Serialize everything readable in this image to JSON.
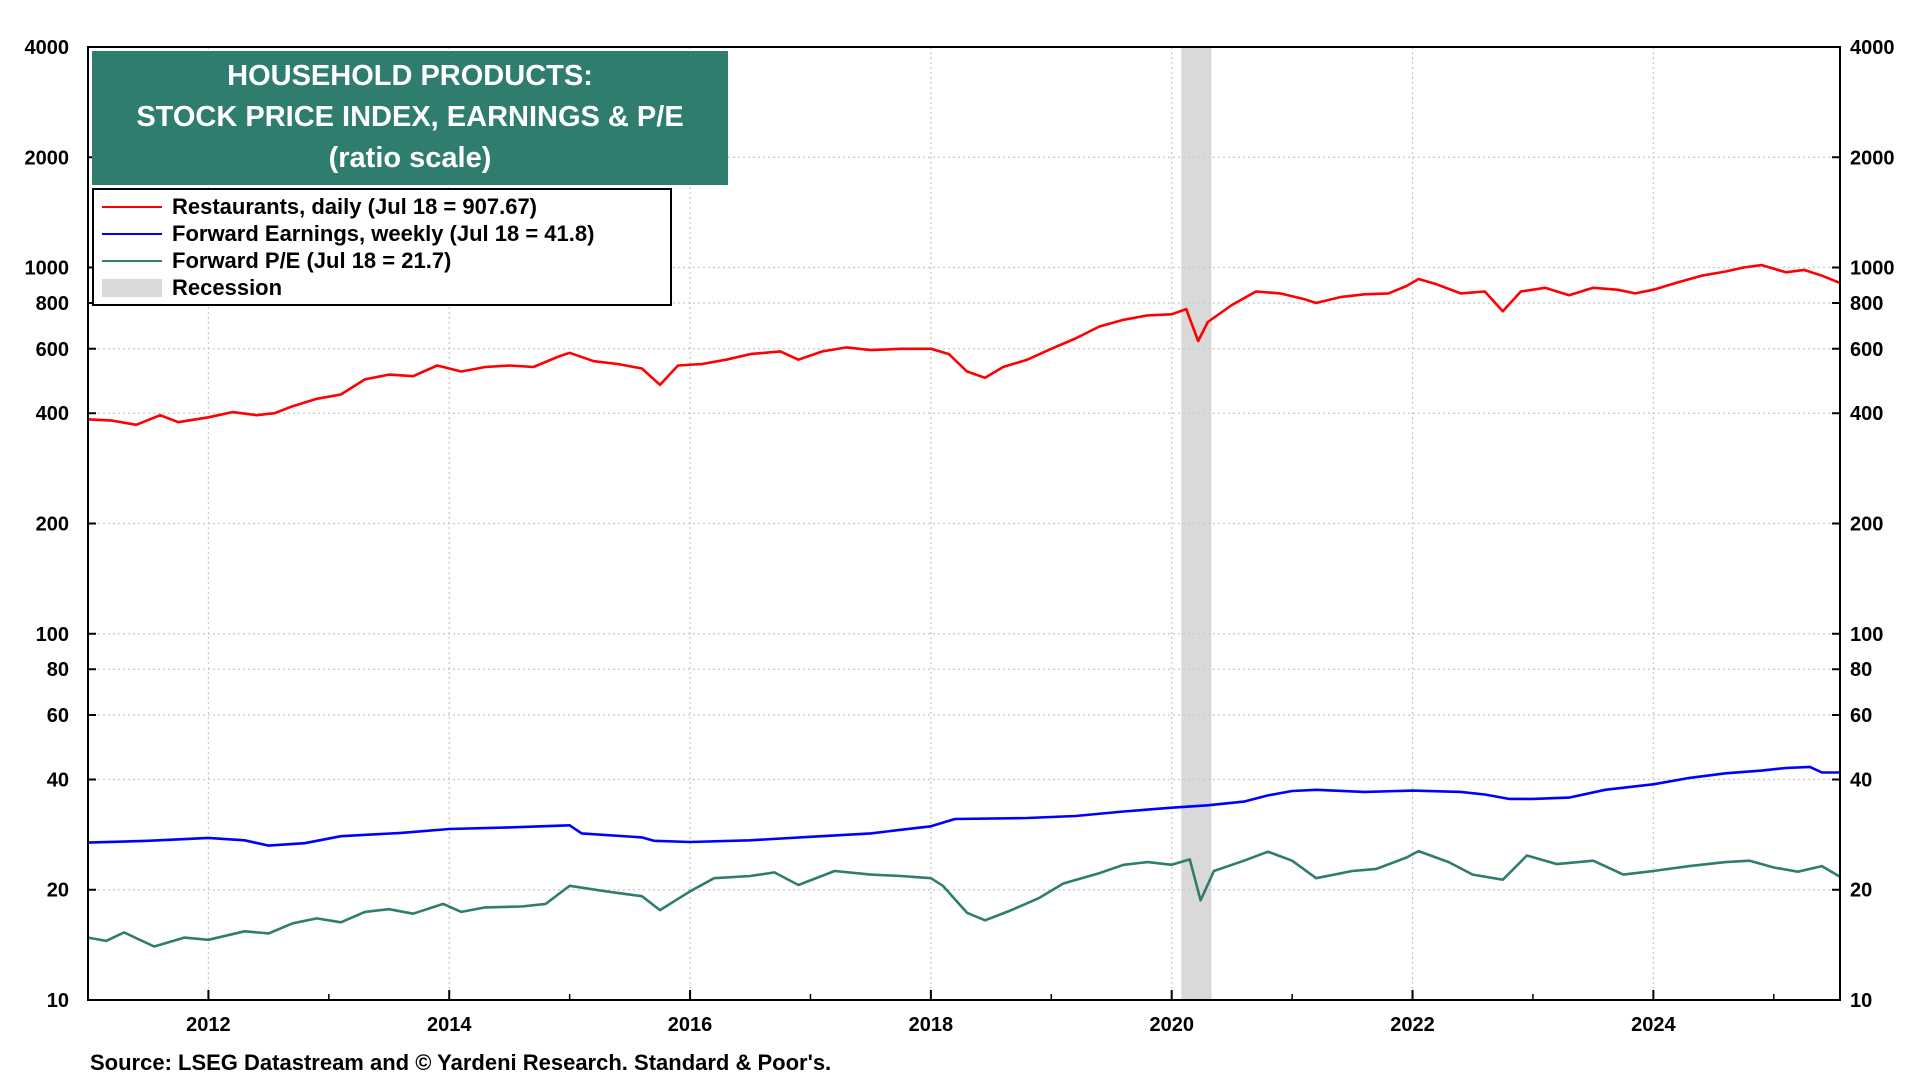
{
  "title": {
    "line1": "HOUSEHOLD PRODUCTS:",
    "line2": "STOCK PRICE INDEX, EARNINGS & P/E",
    "line3": "(ratio scale)"
  },
  "legend": [
    {
      "label": "Restaurants, daily (Jul 18 = 907.67)",
      "color": "#ff0000",
      "kind": "line"
    },
    {
      "label": "Forward Earnings, weekly (Jul 18 = 41.8)",
      "color": "#0000ff",
      "kind": "line"
    },
    {
      "label": "Forward P/E (Jul 18 = 21.7)",
      "color": "#2e7d6e",
      "kind": "line"
    },
    {
      "label": "Recession",
      "color": "#d9d9d9",
      "kind": "band"
    }
  ],
  "source": "Source: LSEG Datastream and © Yardeni Research. Standard & Poor's.",
  "chart_data": {
    "type": "line",
    "yscale": "log",
    "ylim": [
      10,
      4000
    ],
    "xlim": [
      2011.0,
      2025.55
    ],
    "grid": true,
    "legend_position": "top-left",
    "yticks": [
      10,
      20,
      40,
      60,
      80,
      100,
      200,
      400,
      600,
      800,
      1000,
      2000,
      4000
    ],
    "ytick_labels": [
      "10",
      "20",
      "40",
      "60",
      "80",
      "100",
      "200",
      "400",
      "600",
      "800",
      "1000",
      "2000",
      "4000"
    ],
    "xticks": [
      2012,
      2014,
      2016,
      2018,
      2020,
      2022,
      2024
    ],
    "xtick_labels": [
      "2012",
      "2014",
      "2016",
      "2018",
      "2020",
      "2022",
      "2024"
    ],
    "recessions": [
      {
        "start": 2020.08,
        "end": 2020.33
      }
    ],
    "series": [
      {
        "name": "Restaurants, daily (Jul 18 = 907.67)",
        "color": "#ff0000",
        "points": [
          [
            2011.0,
            385
          ],
          [
            2011.2,
            382
          ],
          [
            2011.4,
            372
          ],
          [
            2011.6,
            395
          ],
          [
            2011.75,
            378
          ],
          [
            2012.0,
            390
          ],
          [
            2012.2,
            403
          ],
          [
            2012.4,
            395
          ],
          [
            2012.55,
            400
          ],
          [
            2012.7,
            418
          ],
          [
            2012.9,
            438
          ],
          [
            2013.1,
            450
          ],
          [
            2013.3,
            495
          ],
          [
            2013.5,
            510
          ],
          [
            2013.7,
            505
          ],
          [
            2013.9,
            540
          ],
          [
            2014.1,
            520
          ],
          [
            2014.3,
            535
          ],
          [
            2014.5,
            540
          ],
          [
            2014.7,
            535
          ],
          [
            2014.9,
            570
          ],
          [
            2015.0,
            585
          ],
          [
            2015.2,
            555
          ],
          [
            2015.4,
            545
          ],
          [
            2015.6,
            530
          ],
          [
            2015.75,
            478
          ],
          [
            2015.9,
            540
          ],
          [
            2016.1,
            545
          ],
          [
            2016.3,
            560
          ],
          [
            2016.5,
            580
          ],
          [
            2016.75,
            590
          ],
          [
            2016.9,
            560
          ],
          [
            2017.1,
            590
          ],
          [
            2017.3,
            605
          ],
          [
            2017.5,
            595
          ],
          [
            2017.75,
            600
          ],
          [
            2018.0,
            600
          ],
          [
            2018.15,
            580
          ],
          [
            2018.3,
            520
          ],
          [
            2018.45,
            500
          ],
          [
            2018.6,
            535
          ],
          [
            2018.8,
            560
          ],
          [
            2019.0,
            600
          ],
          [
            2019.2,
            640
          ],
          [
            2019.4,
            690
          ],
          [
            2019.6,
            720
          ],
          [
            2019.8,
            740
          ],
          [
            2020.0,
            745
          ],
          [
            2020.12,
            770
          ],
          [
            2020.22,
            630
          ],
          [
            2020.3,
            710
          ],
          [
            2020.5,
            790
          ],
          [
            2020.7,
            860
          ],
          [
            2020.9,
            850
          ],
          [
            2021.1,
            820
          ],
          [
            2021.2,
            800
          ],
          [
            2021.4,
            830
          ],
          [
            2021.6,
            845
          ],
          [
            2021.8,
            850
          ],
          [
            2021.95,
            890
          ],
          [
            2022.05,
            930
          ],
          [
            2022.2,
            900
          ],
          [
            2022.4,
            850
          ],
          [
            2022.6,
            860
          ],
          [
            2022.75,
            760
          ],
          [
            2022.9,
            860
          ],
          [
            2023.1,
            880
          ],
          [
            2023.3,
            840
          ],
          [
            2023.5,
            880
          ],
          [
            2023.7,
            870
          ],
          [
            2023.85,
            850
          ],
          [
            2024.0,
            870
          ],
          [
            2024.2,
            910
          ],
          [
            2024.4,
            950
          ],
          [
            2024.6,
            975
          ],
          [
            2024.75,
            1000
          ],
          [
            2024.9,
            1015
          ],
          [
            2025.1,
            970
          ],
          [
            2025.25,
            985
          ],
          [
            2025.4,
            950
          ],
          [
            2025.55,
            908
          ]
        ]
      },
      {
        "name": "Forward Earnings, weekly (Jul 18 = 41.8)",
        "color": "#0000ff",
        "points": [
          [
            2011.0,
            26.9
          ],
          [
            2011.5,
            27.2
          ],
          [
            2012.0,
            27.7
          ],
          [
            2012.3,
            27.3
          ],
          [
            2012.5,
            26.4
          ],
          [
            2012.8,
            26.8
          ],
          [
            2013.1,
            28.0
          ],
          [
            2013.6,
            28.6
          ],
          [
            2014.0,
            29.3
          ],
          [
            2014.5,
            29.6
          ],
          [
            2015.0,
            30.0
          ],
          [
            2015.1,
            28.5
          ],
          [
            2015.6,
            27.8
          ],
          [
            2015.7,
            27.2
          ],
          [
            2016.0,
            27.0
          ],
          [
            2016.5,
            27.3
          ],
          [
            2017.0,
            27.9
          ],
          [
            2017.5,
            28.5
          ],
          [
            2018.0,
            29.8
          ],
          [
            2018.2,
            31.2
          ],
          [
            2018.8,
            31.4
          ],
          [
            2019.2,
            31.8
          ],
          [
            2019.6,
            32.7
          ],
          [
            2020.0,
            33.5
          ],
          [
            2020.3,
            34.0
          ],
          [
            2020.6,
            34.8
          ],
          [
            2020.8,
            36.2
          ],
          [
            2021.0,
            37.2
          ],
          [
            2021.2,
            37.5
          ],
          [
            2021.6,
            37.0
          ],
          [
            2022.0,
            37.3
          ],
          [
            2022.4,
            37.0
          ],
          [
            2022.6,
            36.4
          ],
          [
            2022.8,
            35.4
          ],
          [
            2023.0,
            35.4
          ],
          [
            2023.3,
            35.7
          ],
          [
            2023.6,
            37.5
          ],
          [
            2024.0,
            38.8
          ],
          [
            2024.3,
            40.4
          ],
          [
            2024.6,
            41.6
          ],
          [
            2024.9,
            42.3
          ],
          [
            2025.1,
            43.0
          ],
          [
            2025.3,
            43.3
          ],
          [
            2025.4,
            41.8
          ],
          [
            2025.55,
            41.8
          ]
        ]
      },
      {
        "name": "Forward P/E (Jul 18 = 21.7)",
        "color": "#2e7d6e",
        "points": [
          [
            2011.0,
            14.8
          ],
          [
            2011.15,
            14.5
          ],
          [
            2011.3,
            15.3
          ],
          [
            2011.55,
            14.0
          ],
          [
            2011.8,
            14.8
          ],
          [
            2012.0,
            14.6
          ],
          [
            2012.3,
            15.4
          ],
          [
            2012.5,
            15.2
          ],
          [
            2012.7,
            16.2
          ],
          [
            2012.9,
            16.7
          ],
          [
            2013.1,
            16.3
          ],
          [
            2013.3,
            17.4
          ],
          [
            2013.5,
            17.7
          ],
          [
            2013.7,
            17.2
          ],
          [
            2013.95,
            18.3
          ],
          [
            2014.1,
            17.4
          ],
          [
            2014.3,
            17.9
          ],
          [
            2014.6,
            18.0
          ],
          [
            2014.8,
            18.3
          ],
          [
            2015.0,
            20.5
          ],
          [
            2015.3,
            19.8
          ],
          [
            2015.6,
            19.2
          ],
          [
            2015.75,
            17.6
          ],
          [
            2016.0,
            19.8
          ],
          [
            2016.2,
            21.5
          ],
          [
            2016.5,
            21.8
          ],
          [
            2016.7,
            22.3
          ],
          [
            2016.9,
            20.6
          ],
          [
            2017.2,
            22.5
          ],
          [
            2017.5,
            22.0
          ],
          [
            2017.75,
            21.8
          ],
          [
            2018.0,
            21.5
          ],
          [
            2018.1,
            20.5
          ],
          [
            2018.3,
            17.3
          ],
          [
            2018.45,
            16.5
          ],
          [
            2018.65,
            17.5
          ],
          [
            2018.9,
            19.0
          ],
          [
            2019.1,
            20.8
          ],
          [
            2019.4,
            22.2
          ],
          [
            2019.6,
            23.4
          ],
          [
            2019.8,
            23.8
          ],
          [
            2020.0,
            23.4
          ],
          [
            2020.15,
            24.2
          ],
          [
            2020.24,
            18.7
          ],
          [
            2020.35,
            22.5
          ],
          [
            2020.6,
            24.0
          ],
          [
            2020.8,
            25.4
          ],
          [
            2021.0,
            24.0
          ],
          [
            2021.2,
            21.5
          ],
          [
            2021.5,
            22.5
          ],
          [
            2021.7,
            22.8
          ],
          [
            2021.95,
            24.5
          ],
          [
            2022.05,
            25.5
          ],
          [
            2022.3,
            23.8
          ],
          [
            2022.5,
            22.0
          ],
          [
            2022.75,
            21.3
          ],
          [
            2022.95,
            24.8
          ],
          [
            2023.2,
            23.5
          ],
          [
            2023.5,
            24.0
          ],
          [
            2023.75,
            22.0
          ],
          [
            2024.0,
            22.5
          ],
          [
            2024.3,
            23.2
          ],
          [
            2024.6,
            23.8
          ],
          [
            2024.8,
            24.0
          ],
          [
            2025.0,
            23.0
          ],
          [
            2025.2,
            22.4
          ],
          [
            2025.4,
            23.2
          ],
          [
            2025.55,
            21.7
          ]
        ]
      }
    ]
  }
}
